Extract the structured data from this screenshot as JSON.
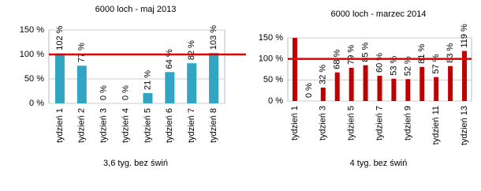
{
  "chart_data": [
    {
      "type": "bar",
      "title": "6000 loch - maj 2013",
      "x_label": "3,6 tyg. bez świń",
      "categories": [
        "tydzień 1",
        "tydzień 2",
        "tydzień 3",
        "tydzień 4",
        "tydzień 5",
        "tydzień 6",
        "tydzień 7",
        "tydzień 8"
      ],
      "values": [
        102,
        77,
        0,
        0,
        21,
        64,
        82,
        103
      ],
      "value_labels": [
        "102 %",
        "77 %",
        "0 %",
        "0 %",
        "21 %",
        "64 %",
        "82 %",
        "103 %"
      ],
      "color": "#31a5c2",
      "reference_line": 100,
      "reference_color": "#e00000",
      "ylim": [
        0,
        150
      ],
      "yticks": [
        {
          "value": 0,
          "label": "0 %"
        },
        {
          "value": 50,
          "label": "50 %"
        },
        {
          "value": 100,
          "label": "100 %"
        },
        {
          "value": 150,
          "label": "150 %"
        }
      ],
      "grid": true
    },
    {
      "type": "bar",
      "title": "6000 loch - marzec 2014",
      "x_label": "4 tyg. bez świń",
      "categories": [
        "tydzień 1",
        null,
        "tydzień 3",
        null,
        "tydzień 5",
        null,
        "tydzień 7",
        null,
        "tydzień 9",
        null,
        "tydzień 11",
        null,
        "tydzień 13"
      ],
      "values": [
        150,
        0,
        32,
        68,
        79,
        85,
        60,
        53,
        52,
        81,
        57,
        83,
        119
      ],
      "value_labels": [
        null,
        "0 %",
        "32 %",
        "68 %",
        "79 %",
        "85 %",
        "60 %",
        "53 %",
        "52 %",
        "81 %",
        "57 %",
        "83 %",
        "119 %"
      ],
      "color": "#c00000",
      "reference_line": 100,
      "reference_color": "#e00000",
      "ylim": [
        0,
        150
      ],
      "yticks": [
        {
          "value": 0,
          "label": "0 %"
        },
        {
          "value": 50,
          "label": "50 %"
        },
        {
          "value": 100,
          "label": "100 %"
        },
        {
          "value": 150,
          "label": "150 %"
        }
      ],
      "grid": true
    }
  ]
}
